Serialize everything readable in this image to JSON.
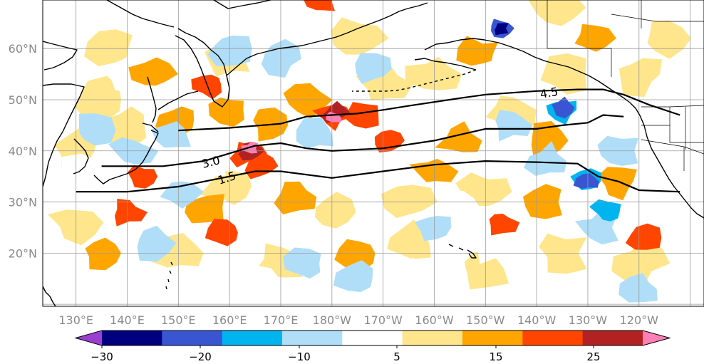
{
  "map": {
    "lat_labels": [
      "60°N",
      "50°N",
      "40°N",
      "30°N",
      "20°N"
    ],
    "lon_labels": [
      "130°E",
      "140°E",
      "150°E",
      "160°E",
      "170°E",
      "180°W",
      "170°W",
      "160°W",
      "150°W",
      "140°W",
      "130°W",
      "120°W"
    ],
    "contour_labels": [
      "4.5",
      "3.0",
      "1.5"
    ],
    "contours": [
      {
        "label": "4.5",
        "points": [
          [
            150,
            44
          ],
          [
            160,
            44.5
          ],
          [
            170,
            45.3
          ],
          [
            175,
            46.7
          ],
          [
            180,
            47
          ],
          [
            185,
            47.3
          ],
          [
            190,
            48
          ],
          [
            195,
            48.8
          ],
          [
            205,
            50.3
          ],
          [
            210,
            51
          ],
          [
            220,
            51.7
          ],
          [
            228,
            52
          ],
          [
            233,
            52
          ],
          [
            237,
            51
          ],
          [
            242,
            49
          ],
          [
            248,
            47
          ]
        ]
      },
      {
        "label": "3.0",
        "points": [
          [
            135,
            37
          ],
          [
            140,
            37
          ],
          [
            147,
            37
          ],
          [
            155,
            38
          ],
          [
            165,
            41
          ],
          [
            170,
            41.5
          ],
          [
            175,
            40.5
          ],
          [
            180,
            40
          ],
          [
            190,
            40.5
          ],
          [
            200,
            42
          ],
          [
            210,
            44.3
          ],
          [
            220,
            44.3
          ],
          [
            225,
            45
          ],
          [
            230,
            45.5
          ],
          [
            233,
            47
          ],
          [
            237,
            46.7
          ]
        ]
      },
      {
        "label": "1.5",
        "points": [
          [
            130,
            32
          ],
          [
            140,
            32
          ],
          [
            150,
            33
          ],
          [
            160,
            35
          ],
          [
            165,
            36
          ],
          [
            170,
            36
          ],
          [
            180,
            34.7
          ],
          [
            190,
            36
          ],
          [
            200,
            37.3
          ],
          [
            210,
            38
          ],
          [
            220,
            37.8
          ],
          [
            228,
            37.5
          ],
          [
            232,
            35
          ],
          [
            236,
            34
          ],
          [
            240,
            32.3
          ],
          [
            248,
            32
          ]
        ]
      }
    ],
    "anomaly_patches": [
      {
        "lon": 180.5,
        "lat": 46.5,
        "value": 25
      },
      {
        "lon": 180.5,
        "lat": 47.5,
        "value": 20
      },
      {
        "lon": 180,
        "lat": 46.8,
        "value": 15
      },
      {
        "lon": 164,
        "lat": 40.5,
        "value": 25
      },
      {
        "lon": 164,
        "lat": 40,
        "value": 20
      },
      {
        "lon": 163.5,
        "lat": 39.5,
        "value": 15
      },
      {
        "lon": 166,
        "lat": 37,
        "value": 15
      },
      {
        "lon": 191,
        "lat": 42,
        "value": 15
      },
      {
        "lon": 143,
        "lat": 35,
        "value": 15
      },
      {
        "lon": 159,
        "lat": 24,
        "value": 15
      },
      {
        "lon": 156,
        "lat": 53,
        "value": 15
      },
      {
        "lon": 178,
        "lat": 69,
        "value": 15
      },
      {
        "lon": 140,
        "lat": 28,
        "value": 15
      },
      {
        "lon": 213,
        "lat": 26,
        "value": 15
      },
      {
        "lon": 241,
        "lat": 23,
        "value": 15
      },
      {
        "lon": 186,
        "lat": 47,
        "value": 15
      },
      {
        "lon": 168,
        "lat": 45,
        "value": 10
      },
      {
        "lon": 150,
        "lat": 46,
        "value": 10
      },
      {
        "lon": 160,
        "lat": 48,
        "value": 10
      },
      {
        "lon": 175,
        "lat": 50,
        "value": 10
      },
      {
        "lon": 200,
        "lat": 36,
        "value": 10
      },
      {
        "lon": 205,
        "lat": 42,
        "value": 10
      },
      {
        "lon": 173,
        "lat": 31,
        "value": 10
      },
      {
        "lon": 155,
        "lat": 29,
        "value": 10
      },
      {
        "lon": 221,
        "lat": 30,
        "value": 10
      },
      {
        "lon": 236,
        "lat": 34,
        "value": 10
      },
      {
        "lon": 209,
        "lat": 59,
        "value": 10
      },
      {
        "lon": 145,
        "lat": 55,
        "value": 10
      },
      {
        "lon": 231,
        "lat": 62,
        "value": 10
      },
      {
        "lon": 222,
        "lat": 42,
        "value": 10
      },
      {
        "lon": 135,
        "lat": 20,
        "value": 10
      },
      {
        "lon": 185,
        "lat": 20,
        "value": 10
      },
      {
        "lon": 130,
        "lat": 26,
        "value": 5
      },
      {
        "lon": 150,
        "lat": 20,
        "value": 5
      },
      {
        "lon": 170,
        "lat": 18,
        "value": 5
      },
      {
        "lon": 195,
        "lat": 22,
        "value": 5
      },
      {
        "lon": 210,
        "lat": 17,
        "value": 5
      },
      {
        "lon": 225,
        "lat": 20,
        "value": 5
      },
      {
        "lon": 240,
        "lat": 18,
        "value": 5
      },
      {
        "lon": 195,
        "lat": 30,
        "value": 5
      },
      {
        "lon": 210,
        "lat": 32,
        "value": 5
      },
      {
        "lon": 180,
        "lat": 28,
        "value": 5
      },
      {
        "lon": 160,
        "lat": 33,
        "value": 5
      },
      {
        "lon": 135,
        "lat": 50,
        "value": 5
      },
      {
        "lon": 140,
        "lat": 45,
        "value": 5
      },
      {
        "lon": 160,
        "lat": 58,
        "value": 5
      },
      {
        "lon": 190,
        "lat": 53,
        "value": 5
      },
      {
        "lon": 200,
        "lat": 55,
        "value": 5
      },
      {
        "lon": 215,
        "lat": 48,
        "value": 5
      },
      {
        "lon": 225,
        "lat": 55,
        "value": 5
      },
      {
        "lon": 240,
        "lat": 55,
        "value": 5
      },
      {
        "lon": 130,
        "lat": 40,
        "value": 5
      },
      {
        "lon": 137,
        "lat": 60,
        "value": 5
      },
      {
        "lon": 185,
        "lat": 62,
        "value": 5
      },
      {
        "lon": 224,
        "lat": 68,
        "value": 5
      },
      {
        "lon": 245,
        "lat": 62,
        "value": 5
      },
      {
        "lon": 213,
        "lat": 64,
        "value": -20
      },
      {
        "lon": 213,
        "lat": 64,
        "value": -25
      },
      {
        "lon": 225,
        "lat": 48,
        "value": -15
      },
      {
        "lon": 225,
        "lat": 48.5,
        "value": -20
      },
      {
        "lon": 230,
        "lat": 34,
        "value": -15
      },
      {
        "lon": 230,
        "lat": 34,
        "value": -20
      },
      {
        "lon": 234,
        "lat": 28,
        "value": -15
      },
      {
        "lon": 177,
        "lat": 43,
        "value": -10
      },
      {
        "lon": 149,
        "lat": 43,
        "value": -10
      },
      {
        "lon": 141,
        "lat": 40,
        "value": -10
      },
      {
        "lon": 133,
        "lat": 44,
        "value": -10
      },
      {
        "lon": 160,
        "lat": 60,
        "value": -10
      },
      {
        "lon": 170,
        "lat": 58,
        "value": -10
      },
      {
        "lon": 188,
        "lat": 56,
        "value": -10
      },
      {
        "lon": 200,
        "lat": 25,
        "value": -10
      },
      {
        "lon": 185,
        "lat": 15,
        "value": -10
      },
      {
        "lon": 175,
        "lat": 18,
        "value": -10
      },
      {
        "lon": 150,
        "lat": 32,
        "value": -10
      },
      {
        "lon": 145,
        "lat": 22,
        "value": -10
      },
      {
        "lon": 215,
        "lat": 45,
        "value": -10
      },
      {
        "lon": 222,
        "lat": 38,
        "value": -10
      },
      {
        "lon": 240,
        "lat": 13,
        "value": -10
      },
      {
        "lon": 236,
        "lat": 40,
        "value": -10
      },
      {
        "lon": 232,
        "lat": 25,
        "value": -10
      },
      {
        "lon": 165,
        "lat": 15,
        "value": -5
      },
      {
        "lon": 195,
        "lat": 15,
        "value": -5
      },
      {
        "lon": 205,
        "lat": 29,
        "value": -5
      },
      {
        "lon": 155,
        "lat": 38,
        "value": -5
      },
      {
        "lon": 140,
        "lat": 55,
        "value": -5
      },
      {
        "lon": 178,
        "lat": 55,
        "value": -5
      },
      {
        "lon": 130,
        "lat": 35,
        "value": -5
      },
      {
        "lon": 246,
        "lat": 44,
        "value": -5
      },
      {
        "lon": 212,
        "lat": 22,
        "value": -5
      }
    ]
  },
  "colorbar": {
    "ticks": [
      "−30",
      "−20",
      "−10",
      "5",
      "15",
      "25"
    ],
    "colors": [
      "#9b3fd1",
      "#00007f",
      "#3a55d2",
      "#00b4f0",
      "#b0def8",
      "#ffffff",
      "#ffe68c",
      "#ffa500",
      "#ff4500",
      "#b22222",
      "#ff80b4"
    ],
    "levels": [
      -30,
      -25,
      -20,
      -15,
      -10,
      -5,
      5,
      10,
      15,
      20,
      25,
      30
    ],
    "outline_color": "#000000"
  }
}
